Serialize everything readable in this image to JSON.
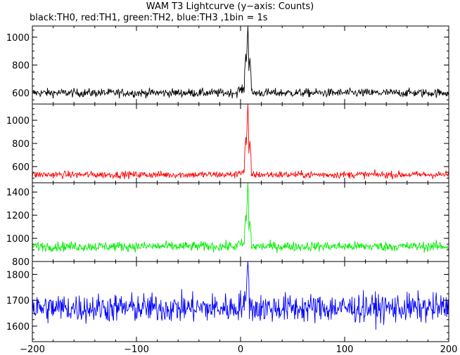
{
  "chart_data": {
    "type": "line",
    "title": "WAM T3 Lightcurve (y−axis: Counts)",
    "subtitle": "black:TH0, red:TH1, green:TH2, blue:TH3 ,1bin = 1s",
    "xlim": [
      -200,
      200
    ],
    "x_ticks": [
      -200,
      -100,
      0,
      100,
      200
    ],
    "x_tick_labels": [
      "−200",
      "−100",
      "0",
      "100",
      "200"
    ],
    "bin_seconds": 1,
    "grid": false,
    "panels": [
      {
        "name": "TH0",
        "color": "#000000",
        "ylim": [
          520,
          1080
        ],
        "y_ticks": [
          600,
          800,
          1000
        ],
        "y_tick_labels": [
          "600",
          "800",
          "1000"
        ],
        "baseline": 600,
        "noise": 22,
        "peaks": [
          {
            "x": 5,
            "y": 860
          },
          {
            "x": 7,
            "y": 1065
          },
          {
            "x": 9,
            "y": 850
          }
        ]
      },
      {
        "name": "TH1",
        "color": "#ff0000",
        "ylim": [
          460,
          1140
        ],
        "y_ticks": [
          600,
          800,
          1000
        ],
        "y_tick_labels": [
          "600",
          "800",
          "1000"
        ],
        "baseline": 530,
        "noise": 22,
        "peaks": [
          {
            "x": 5,
            "y": 830
          },
          {
            "x": 7,
            "y": 1130
          },
          {
            "x": 9,
            "y": 820
          }
        ]
      },
      {
        "name": "TH2",
        "color": "#00ee00",
        "ylim": [
          800,
          1480
        ],
        "y_ticks": [
          800,
          1000,
          1200,
          1400
        ],
        "y_tick_labels": [
          "800",
          "1000",
          "1200",
          "1400"
        ],
        "baseline": 930,
        "noise": 30,
        "peaks": [
          {
            "x": 5,
            "y": 1180
          },
          {
            "x": 7,
            "y": 1470
          },
          {
            "x": 9,
            "y": 1150
          }
        ]
      },
      {
        "name": "TH3",
        "color": "#0000ff",
        "ylim": [
          1540,
          1850
        ],
        "y_ticks": [
          1600,
          1700,
          1800
        ],
        "y_tick_labels": [
          "1600",
          "1700",
          "1800"
        ],
        "baseline": 1670,
        "noise": 40,
        "peaks": [
          {
            "x": 7,
            "y": 1845
          }
        ]
      }
    ]
  }
}
